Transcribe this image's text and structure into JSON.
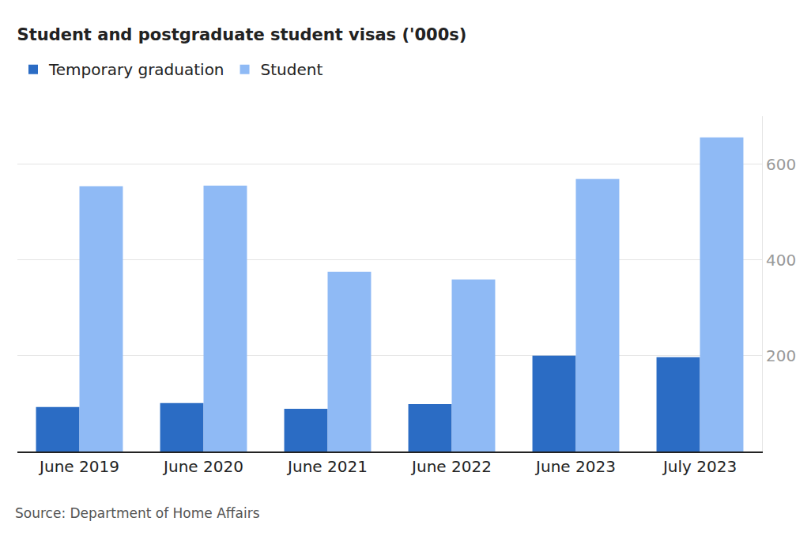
{
  "chart_data": {
    "type": "bar",
    "title": "Student and postgraduate student visas ('000s)",
    "categories": [
      "June 2019",
      "June 2020",
      "June 2021",
      "June 2022",
      "June 2023",
      "July 2023"
    ],
    "series": [
      {
        "name": "Temporary graduation",
        "color": "#2b6cc4",
        "values": [
          93,
          101,
          89,
          99,
          200,
          197
        ]
      },
      {
        "name": "Student",
        "color": "#8fbaf5",
        "values": [
          554,
          555,
          375,
          359,
          569,
          656
        ]
      }
    ],
    "ylim": [
      0,
      700
    ],
    "yticks": [
      200,
      400,
      600
    ],
    "grid": true,
    "legend": "top-left",
    "annotations": [
      "Source: Department of Home Affairs"
    ]
  }
}
